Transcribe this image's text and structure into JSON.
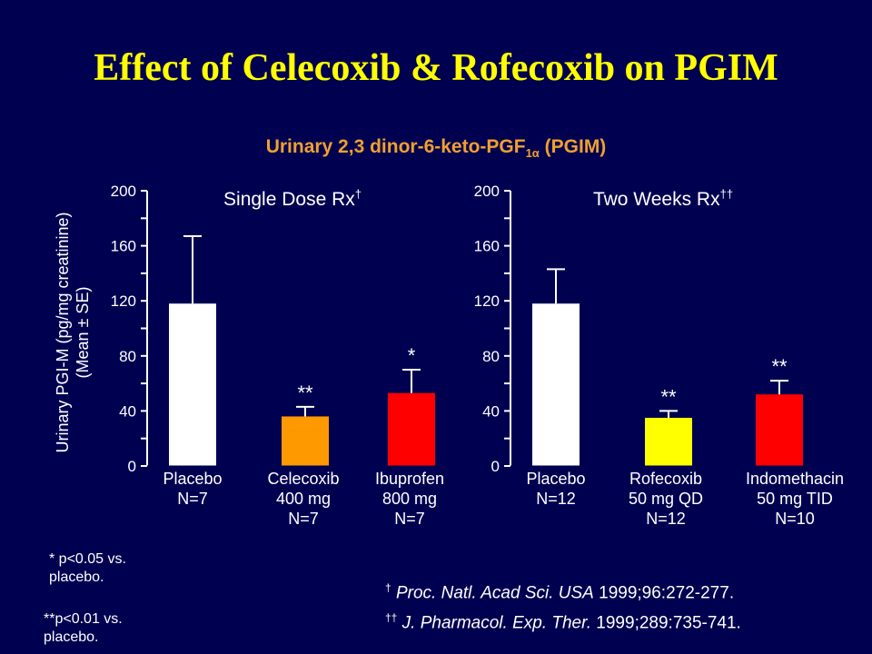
{
  "title": "Effect of Celecoxib & Rofecoxib on PGIM",
  "subtitle": {
    "main": "Urinary 2,3 dinor-6-keto-PGF",
    "sub": "1α",
    "suffix": " (PGIM)"
  },
  "y_axis_label_line1": "Urinary PGI-M (pg/mg creatinine)",
  "y_axis_label_line2": "(Mean ± SE)",
  "colors": {
    "background": "#000050",
    "title": "#ffff00",
    "subtitle": "#f0a030",
    "placebo": "#ffffff",
    "celecoxib": "#ff9900",
    "ibuprofen": "#ff0000",
    "rofecoxib": "#ffff00",
    "indomethacin": "#ff0000"
  },
  "chart_data": [
    {
      "type": "bar",
      "title": "Single Dose Rx",
      "title_mark": "†",
      "ylim": [
        0,
        200
      ],
      "yticks": [
        "0",
        "40",
        "80",
        "120",
        "160",
        "200"
      ],
      "categories": [
        [
          "Placebo",
          "N=7"
        ],
        [
          "Celecoxib",
          "400 mg",
          "N=7"
        ],
        [
          "Ibuprofen",
          "800 mg",
          "N=7"
        ]
      ],
      "values": [
        118,
        36,
        53
      ],
      "errors": [
        49,
        7,
        17
      ],
      "significance": [
        "",
        "**",
        "*"
      ],
      "bar_colors": [
        "#ffffff",
        "#ff9900",
        "#ff0000"
      ]
    },
    {
      "type": "bar",
      "title": "Two Weeks Rx",
      "title_mark": "††",
      "ylim": [
        0,
        200
      ],
      "yticks": [
        "0",
        "40",
        "80",
        "120",
        "160",
        "200"
      ],
      "categories": [
        [
          "Placebo",
          "N=12"
        ],
        [
          "Rofecoxib",
          "50 mg QD",
          "N=12"
        ],
        [
          "Indomethacin",
          "50 mg TID",
          "N=10"
        ]
      ],
      "values": [
        118,
        35,
        52
      ],
      "errors": [
        25,
        5,
        10
      ],
      "significance": [
        "",
        "**",
        "**"
      ],
      "bar_colors": [
        "#ffffff",
        "#ffff00",
        "#ff0000"
      ]
    }
  ],
  "notes": {
    "single_star_1": "* p<0.05 vs.",
    "single_star_2": "placebo.",
    "double_star_1": "**p<0.01 vs.",
    "double_star_2": "placebo."
  },
  "references": [
    {
      "mark": "†",
      "journal": "Proc. Natl. Acad Sci. USA",
      "citation": "1999;96:272-277."
    },
    {
      "mark": "††",
      "journal": "J. Pharmacol. Exp. Ther.",
      "citation": "1999;289:735-741."
    }
  ]
}
